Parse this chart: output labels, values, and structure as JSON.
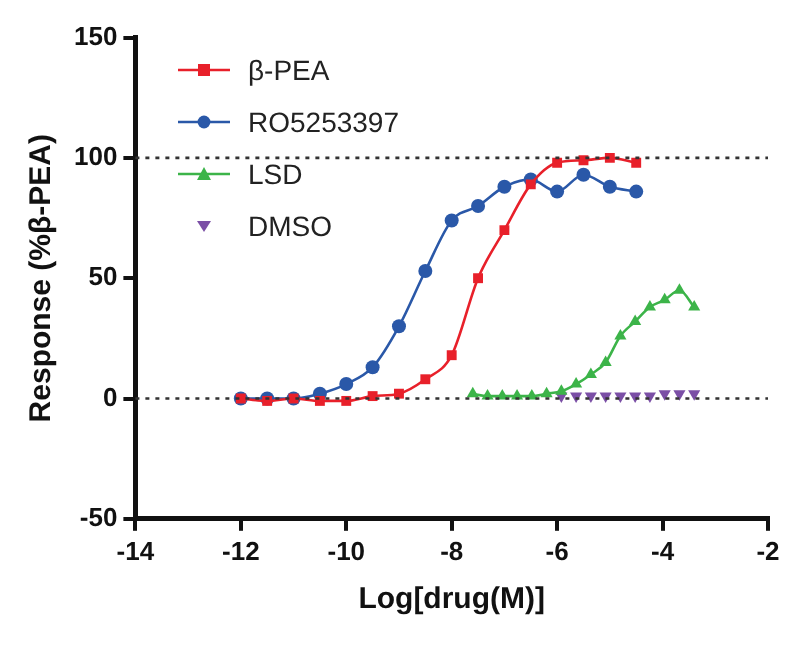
{
  "chart_data": {
    "type": "line",
    "xlabel": "Log[drug(M)]",
    "ylabel": "Response (%β-PEA)",
    "xlim": [
      -14,
      -2
    ],
    "xticks": [
      -14,
      -12,
      -10,
      -8,
      -6,
      -4,
      -2
    ],
    "ylim": [
      -50,
      150
    ],
    "yticks": [
      -50,
      0,
      50,
      100,
      150
    ],
    "grid": false,
    "legend": "top left",
    "ref_lines": [
      {
        "axis": "y",
        "value": 0,
        "color": "#333333",
        "line_style": "dotted"
      },
      {
        "axis": "y",
        "value": 100,
        "color": "#333333",
        "line_style": "dotted"
      }
    ],
    "series": [
      {
        "name": "β-PEA",
        "type": "line",
        "marker": "square",
        "color": "#e8202a",
        "x": [
          -12,
          -11.5,
          -11,
          -10.5,
          -10,
          -9.5,
          -9,
          -8.5,
          -8,
          -7.5,
          -7,
          -6.5,
          -6,
          -5.5,
          -5,
          -4.5
        ],
        "values": [
          0,
          -1,
          0,
          -1,
          -1,
          1,
          2,
          8,
          18,
          50,
          70,
          89,
          98,
          99,
          100,
          98
        ]
      },
      {
        "name": "RO5253397",
        "type": "line",
        "marker": "circle",
        "color": "#2a58a8",
        "x": [
          -12,
          -11.5,
          -11,
          -10.5,
          -10,
          -9.5,
          -9,
          -8.5,
          -8,
          -7.5,
          -7,
          -6.5,
          -6,
          -5.5,
          -5,
          -4.5
        ],
        "values": [
          0,
          0,
          0,
          2,
          6,
          13,
          30,
          53,
          74,
          80,
          88,
          91,
          86,
          93,
          88,
          86
        ]
      },
      {
        "name": "LSD",
        "type": "line",
        "marker": "triangle",
        "color": "#3cb449",
        "x": [
          -7.6,
          -7.32,
          -7.04,
          -6.76,
          -6.48,
          -6.2,
          -5.92,
          -5.64,
          -5.36,
          -5.08,
          -4.8,
          -4.52,
          -4.24,
          -3.96,
          -3.68,
          -3.4
        ],
        "values": [
          2,
          1,
          1,
          1,
          1,
          2,
          3,
          6,
          10,
          15,
          26,
          32,
          38,
          41,
          45,
          38
        ]
      },
      {
        "name": "DMSO",
        "type": "scatter",
        "marker": "triangle-down",
        "color": "#7b4fa6",
        "x": [
          -5.92,
          -5.64,
          -5.36,
          -5.08,
          -4.8,
          -4.52,
          -4.24,
          -3.96,
          -3.68,
          -3.4
        ],
        "values": [
          1,
          1,
          1,
          1,
          1,
          1,
          1,
          2,
          2,
          2
        ]
      }
    ]
  }
}
